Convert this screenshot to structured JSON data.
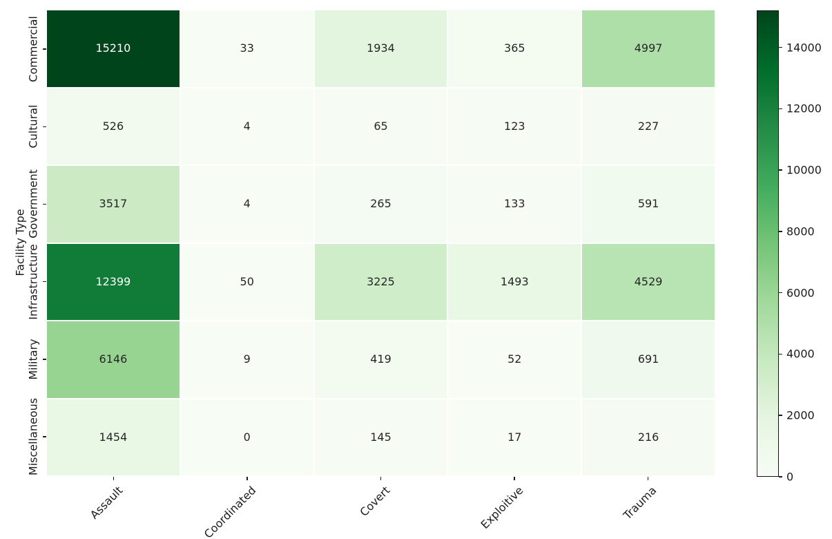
{
  "chart_data": {
    "type": "heatmap",
    "title": "",
    "xlabel": "",
    "ylabel": "Facility Type",
    "rows": [
      "Commercial",
      "Cultural",
      "Government",
      "Infrastructure",
      "Military",
      "Miscellaneous"
    ],
    "columns": [
      "Assault",
      "Coordinated",
      "Covert",
      "Exploitive",
      "Trauma"
    ],
    "values": [
      [
        15210,
        33,
        1934,
        365,
        4997
      ],
      [
        526,
        4,
        65,
        123,
        227
      ],
      [
        3517,
        4,
        265,
        133,
        591
      ],
      [
        12399,
        50,
        3225,
        1493,
        4529
      ],
      [
        6146,
        9,
        419,
        52,
        691
      ],
      [
        1454,
        0,
        145,
        17,
        216
      ]
    ],
    "vmin": 0,
    "vmax": 15210,
    "grid": false,
    "annotated": true,
    "colormap": {
      "name": "Greens",
      "anchors": [
        "#f7fcf5",
        "#e5f5e0",
        "#c7e9c0",
        "#a1d99b",
        "#74c476",
        "#41ab5d",
        "#238b45",
        "#006d2c",
        "#00441b"
      ]
    },
    "annotation_colors": {
      "light": "#ffffff",
      "dark": "#262626"
    },
    "colorbar": {
      "position": "right",
      "ticks": [
        0,
        2000,
        4000,
        6000,
        8000,
        10000,
        12000,
        14000
      ]
    }
  }
}
